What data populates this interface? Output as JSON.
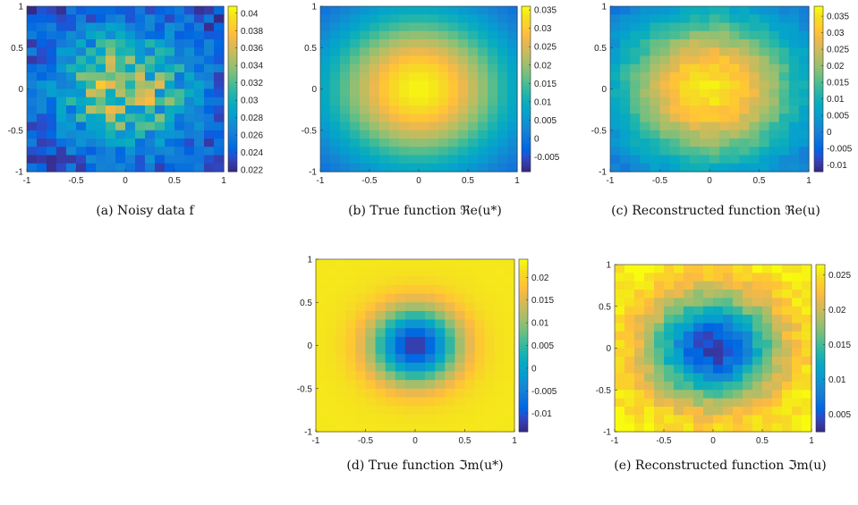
{
  "chart_data": [
    {
      "id": "a",
      "type": "heatmap",
      "field": "noisy",
      "caption": "(a) Noisy data f",
      "grid": 20,
      "xlim": [
        -1,
        1
      ],
      "ylim": [
        -1,
        1
      ],
      "xticks": [
        "-1",
        "-0.5",
        "0",
        "0.5",
        "1"
      ],
      "yticks": [
        "1",
        "0.5",
        "0",
        "-0.5",
        "-1"
      ],
      "clim": [
        0.0218,
        0.0408
      ],
      "colorbar_ticks": [
        "0.04",
        "0.038",
        "0.036",
        "0.034",
        "0.032",
        "0.03",
        "0.028",
        "0.026",
        "0.024",
        "0.022"
      ],
      "colorbar_values": [
        0.04,
        0.038,
        0.036,
        0.034,
        0.032,
        0.03,
        0.028,
        0.026,
        0.024,
        0.022
      ],
      "colormap": "parula"
    },
    {
      "id": "b",
      "type": "heatmap",
      "field": "true_re",
      "caption": "(b) True function ℜe(u*)",
      "grid": 20,
      "xlim": [
        -1,
        1
      ],
      "ylim": [
        -1,
        1
      ],
      "xticks": [
        "-1",
        "-0.5",
        "0",
        "0.5",
        "1"
      ],
      "yticks": [
        "1",
        "0.5",
        "0",
        "-0.5",
        "-1"
      ],
      "clim": [
        -0.009,
        0.036
      ],
      "colorbar_ticks": [
        "0.035",
        "0.03",
        "0.025",
        "0.02",
        "0.015",
        "0.01",
        "0.005",
        "0",
        "-0.005"
      ],
      "colorbar_values": [
        0.035,
        0.03,
        0.025,
        0.02,
        0.015,
        0.01,
        0.005,
        0,
        -0.005
      ],
      "colormap": "parula"
    },
    {
      "id": "c",
      "type": "heatmap",
      "field": "rec_re",
      "caption": "(c) Reconstructed function ℜe(u)",
      "grid": 20,
      "xlim": [
        -1,
        1
      ],
      "ylim": [
        -1,
        1
      ],
      "xticks": [
        "-1",
        "-0.5",
        "0",
        "0.5",
        "1"
      ],
      "yticks": [
        "1",
        "0.5",
        "0",
        "-0.5",
        "-1"
      ],
      "clim": [
        -0.012,
        0.038
      ],
      "colorbar_ticks": [
        "0.035",
        "0.03",
        "0.025",
        "0.02",
        "0.015",
        "0.01",
        "0.005",
        "0",
        "-0.005",
        "-0.01"
      ],
      "colorbar_values": [
        0.035,
        0.03,
        0.025,
        0.02,
        0.015,
        0.01,
        0.005,
        0,
        -0.005,
        -0.01
      ],
      "colormap": "parula"
    },
    {
      "id": "d",
      "type": "heatmap",
      "field": "true_im",
      "caption": "(d) True function ℑm(u*)",
      "grid": 20,
      "xlim": [
        -1,
        1
      ],
      "ylim": [
        -1,
        1
      ],
      "xticks": [
        "-1",
        "-0.5",
        "0",
        "0.5",
        "1"
      ],
      "yticks": [
        "1",
        "0.5",
        "0",
        "-0.5",
        "-1"
      ],
      "clim": [
        -0.014,
        0.024
      ],
      "colorbar_ticks": [
        "0.02",
        "0.015",
        "0.01",
        "0.005",
        "0",
        "-0.005",
        "-0.01"
      ],
      "colorbar_values": [
        0.02,
        0.015,
        0.01,
        0.005,
        0,
        -0.005,
        -0.01
      ],
      "colormap": "parula"
    },
    {
      "id": "e",
      "type": "heatmap",
      "field": "rec_im",
      "caption": "(e) Reconstructed function ℑm(u)",
      "grid": 20,
      "xlim": [
        -1,
        1
      ],
      "ylim": [
        -1,
        1
      ],
      "xticks": [
        "-1",
        "-0.5",
        "0",
        "0.5",
        "1"
      ],
      "yticks": [
        "1",
        "0.5",
        "0",
        "-0.5",
        "-1"
      ],
      "clim": [
        0.0025,
        0.0265
      ],
      "colorbar_ticks": [
        "0.025",
        "0.02",
        "0.015",
        "0.01",
        "0.005"
      ],
      "colorbar_values": [
        0.025,
        0.02,
        0.015,
        0.01,
        0.005
      ],
      "colormap": "parula"
    }
  ]
}
